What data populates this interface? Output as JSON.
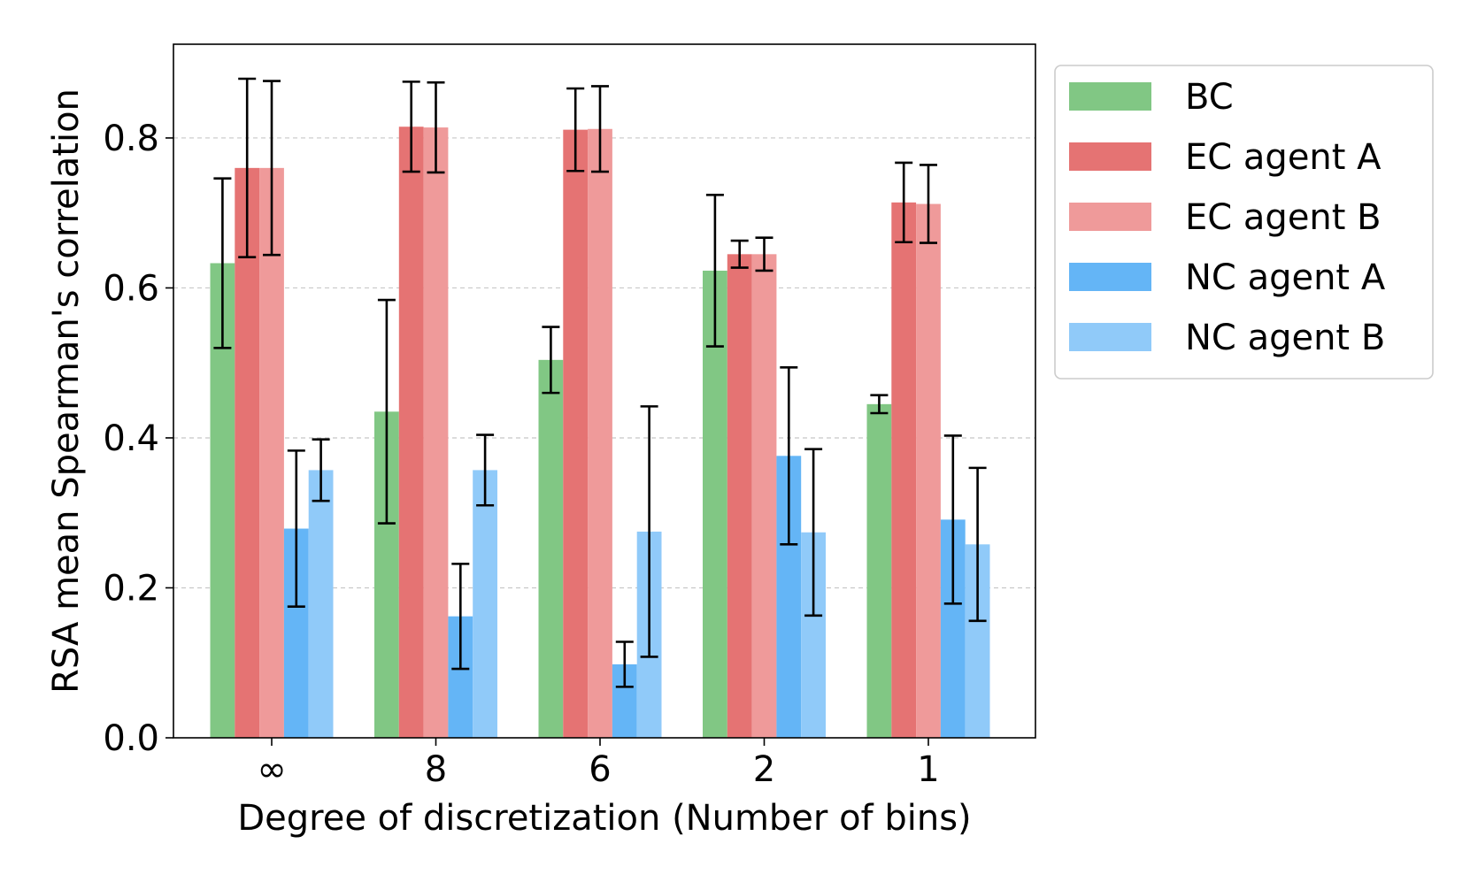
{
  "chart_data": {
    "type": "bar",
    "title": "",
    "xlabel": "Degree of discretization (Number of bins)",
    "ylabel": "RSA mean Spearman's correlation",
    "categories": [
      "∞",
      "8",
      "6",
      "2",
      "1"
    ],
    "ylim": [
      0,
      0.925
    ],
    "yticks": [
      0.0,
      0.2,
      0.4,
      0.6,
      0.8
    ],
    "ytick_labels": [
      "0.0",
      "0.2",
      "0.4",
      "0.6",
      "0.8"
    ],
    "grid": "y-dashed",
    "legend_position": "outside-top-right",
    "series": [
      {
        "name": "BC",
        "color": "#81c784",
        "values": [
          0.633,
          0.435,
          0.504,
          0.623,
          0.445
        ],
        "errors": [
          0.113,
          0.149,
          0.044,
          0.101,
          0.012
        ]
      },
      {
        "name": "EC agent A",
        "color": "#e57373",
        "values": [
          0.76,
          0.815,
          0.811,
          0.645,
          0.714
        ],
        "errors": [
          0.119,
          0.06,
          0.055,
          0.018,
          0.053
        ]
      },
      {
        "name": "EC agent B",
        "color": "#ef9a9a",
        "values": [
          0.76,
          0.814,
          0.812,
          0.645,
          0.712
        ],
        "errors": [
          0.116,
          0.06,
          0.057,
          0.022,
          0.052
        ]
      },
      {
        "name": "NC agent A",
        "color": "#64b5f6",
        "values": [
          0.279,
          0.162,
          0.098,
          0.376,
          0.291
        ],
        "errors": [
          0.104,
          0.07,
          0.03,
          0.118,
          0.112
        ]
      },
      {
        "name": "NC agent B",
        "color": "#90caf9",
        "values": [
          0.357,
          0.357,
          0.275,
          0.274,
          0.258
        ],
        "errors": [
          0.041,
          0.047,
          0.167,
          0.111,
          0.102
        ]
      }
    ]
  }
}
